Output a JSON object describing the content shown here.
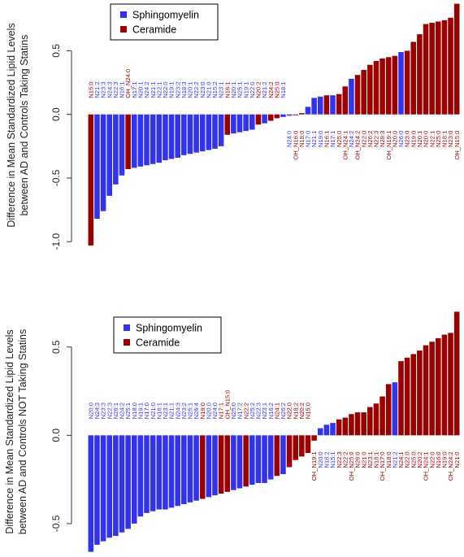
{
  "colors": {
    "Sphingomyelin": "#3333ee",
    "Ceramide": "#990000"
  },
  "legend": [
    {
      "label": "Sphingomyelin",
      "color": "#3333ee"
    },
    {
      "label": "Ceramide",
      "color": "#990000"
    }
  ],
  "chart_data": [
    {
      "type": "bar",
      "ylabel": "Difference in Mean Standardized Lipid Levels\nbetween AD and Controls Taking Statins",
      "ylim": [
        -1.05,
        0.88
      ],
      "yticks": [
        "0.5",
        "0.0",
        "-0.5",
        "-1.0"
      ],
      "yticks_values": [
        0.5,
        0.0,
        -0.5,
        -1.0
      ],
      "grid": false,
      "legend_position": "top-left",
      "categories": [
        "N15:0",
        "N21:2",
        "N23:3",
        "N24:3",
        "N22:3",
        "N16:1",
        "OH_N24:0",
        "N17:1",
        "N20:1",
        "N24:2",
        "N21:1",
        "N22:1",
        "N22:0",
        "N19:1",
        "N23:2",
        "N18:3",
        "N20:1",
        "N22:2",
        "N23:0",
        "N21:0",
        "N15:2",
        "N23:1",
        "N16:1",
        "N20:1",
        "N25:1",
        "N19:1",
        "N22:0",
        "N20:2",
        "N21:2",
        "N24:2",
        "N25:0",
        "N18:1",
        "N24:0",
        "OH_N16:0",
        "N18:0",
        "N17:0",
        "N21:1",
        "N19:0",
        "N16:1",
        "N17:1",
        "N25:0",
        "OH_N24:1",
        "N24:2",
        "OH_N24:2",
        "N22:0",
        "N26:2",
        "N22:3",
        "N28:3",
        "OH_N19:1",
        "N20:0",
        "N26:0",
        "N23:0",
        "N19:0",
        "N20:1",
        "N20:0",
        "N22:1",
        "N25:0",
        "N18:1",
        "N23:0",
        "OH_N15:0"
      ],
      "category_types": [
        "Ceramide",
        "Sphingomyelin",
        "Sphingomyelin",
        "Sphingomyelin",
        "Sphingomyelin",
        "Sphingomyelin",
        "Ceramide",
        "Sphingomyelin",
        "Sphingomyelin",
        "Sphingomyelin",
        "Sphingomyelin",
        "Sphingomyelin",
        "Sphingomyelin",
        "Sphingomyelin",
        "Sphingomyelin",
        "Sphingomyelin",
        "Sphingomyelin",
        "Sphingomyelin",
        "Sphingomyelin",
        "Sphingomyelin",
        "Sphingomyelin",
        "Sphingomyelin",
        "Ceramide",
        "Sphingomyelin",
        "Sphingomyelin",
        "Sphingomyelin",
        "Sphingomyelin",
        "Ceramide",
        "Sphingomyelin",
        "Ceramide",
        "Ceramide",
        "Sphingomyelin",
        "Sphingomyelin",
        "Ceramide",
        "Ceramide",
        "Sphingomyelin",
        "Sphingomyelin",
        "Sphingomyelin",
        "Ceramide",
        "Sphingomyelin",
        "Ceramide",
        "Ceramide",
        "Sphingomyelin",
        "Ceramide",
        "Ceramide",
        "Ceramide",
        "Ceramide",
        "Ceramide",
        "Ceramide",
        "Ceramide",
        "Sphingomyelin",
        "Ceramide",
        "Ceramide",
        "Ceramide",
        "Ceramide",
        "Ceramide",
        "Ceramide",
        "Ceramide",
        "Ceramide",
        "Ceramide"
      ],
      "values": [
        -1.03,
        -0.82,
        -0.76,
        -0.64,
        -0.55,
        -0.48,
        -0.43,
        -0.42,
        -0.41,
        -0.4,
        -0.39,
        -0.38,
        -0.36,
        -0.35,
        -0.34,
        -0.32,
        -0.31,
        -0.3,
        -0.29,
        -0.28,
        -0.27,
        -0.25,
        -0.16,
        -0.15,
        -0.14,
        -0.13,
        -0.12,
        -0.08,
        -0.07,
        -0.05,
        -0.03,
        -0.02,
        -0.01,
        -0.005,
        0.01,
        0.06,
        0.13,
        0.14,
        0.15,
        0.15,
        0.16,
        0.22,
        0.28,
        0.31,
        0.35,
        0.39,
        0.42,
        0.44,
        0.45,
        0.46,
        0.49,
        0.5,
        0.57,
        0.63,
        0.71,
        0.72,
        0.73,
        0.74,
        0.76,
        0.87
      ],
      "label_side": [
        "above",
        "above",
        "above",
        "above",
        "above",
        "above",
        "above",
        "above",
        "above",
        "above",
        "above",
        "above",
        "above",
        "above",
        "above",
        "above",
        "above",
        "above",
        "above",
        "above",
        "above",
        "above",
        "above",
        "above",
        "above",
        "above",
        "above",
        "above",
        "above",
        "above",
        "above",
        "above",
        "below",
        "below",
        "below",
        "below",
        "below",
        "below",
        "below",
        "below",
        "below",
        "below",
        "below",
        "below",
        "below",
        "below",
        "below",
        "below",
        "below",
        "below",
        "below",
        "below",
        "below",
        "below",
        "below",
        "below",
        "below",
        "below",
        "below",
        "below"
      ]
    },
    {
      "type": "bar",
      "ylabel": "Difference in Mean Standardized Lipid Levels\nbetween AD and Controls NOT Taking Statins",
      "ylim": [
        -0.68,
        0.72
      ],
      "yticks": [
        "0.5",
        "0.0",
        "-0.5"
      ],
      "yticks_values": [
        0.5,
        0.0,
        -0.5
      ],
      "grid": false,
      "legend_position": "top-left",
      "categories": [
        "N20:0",
        "N24:3",
        "N23:3",
        "N22:3",
        "N26:1",
        "N24:2",
        "N25:1",
        "N18:0",
        "N19:1",
        "N17:0",
        "N21:0",
        "N16:1",
        "N23:1",
        "N21:1",
        "N24:3",
        "N23:2",
        "N25:1",
        "N26:4",
        "N19:0",
        "N20:0",
        "N24:0",
        "N17:1",
        "OH_N15:0",
        "N25:0",
        "N17:2",
        "N22:2",
        "N25:2",
        "N22:3",
        "N23:1",
        "N16:2",
        "N24:1",
        "N26:2",
        "N22:0",
        "N18:2",
        "N20:2",
        "N15:0",
        "OH_N19:1",
        "N20:0",
        "N18:2",
        "N15:1",
        "N22:3",
        "N22:2",
        "OH_N25:0",
        "N26:0",
        "N21:0",
        "N23:1",
        "N18:1",
        "OH_N17:0",
        "N18:0",
        "N21:2",
        "N24:1",
        "N22:0",
        "N25:0",
        "N20:2",
        "OH_N24:1",
        "N22:0",
        "N16:0",
        "N19:0",
        "OH_N24:2",
        "N21:0"
      ],
      "category_types": [
        "Sphingomyelin",
        "Sphingomyelin",
        "Sphingomyelin",
        "Sphingomyelin",
        "Sphingomyelin",
        "Sphingomyelin",
        "Sphingomyelin",
        "Sphingomyelin",
        "Sphingomyelin",
        "Sphingomyelin",
        "Sphingomyelin",
        "Sphingomyelin",
        "Sphingomyelin",
        "Sphingomyelin",
        "Sphingomyelin",
        "Sphingomyelin",
        "Sphingomyelin",
        "Sphingomyelin",
        "Ceramide",
        "Sphingomyelin",
        "Sphingomyelin",
        "Ceramide",
        "Ceramide",
        "Sphingomyelin",
        "Sphingomyelin",
        "Ceramide",
        "Sphingomyelin",
        "Sphingomyelin",
        "Sphingomyelin",
        "Sphingomyelin",
        "Ceramide",
        "Sphingomyelin",
        "Ceramide",
        "Ceramide",
        "Ceramide",
        "Ceramide",
        "Ceramide",
        "Sphingomyelin",
        "Sphingomyelin",
        "Sphingomyelin",
        "Ceramide",
        "Ceramide",
        "Ceramide",
        "Ceramide",
        "Ceramide",
        "Ceramide",
        "Ceramide",
        "Ceramide",
        "Ceramide",
        "Sphingomyelin",
        "Ceramide",
        "Ceramide",
        "Ceramide",
        "Ceramide",
        "Ceramide",
        "Ceramide",
        "Ceramide",
        "Ceramide",
        "Ceramide",
        "Ceramide"
      ],
      "values": [
        -0.66,
        -0.62,
        -0.6,
        -0.58,
        -0.57,
        -0.55,
        -0.53,
        -0.5,
        -0.46,
        -0.44,
        -0.43,
        -0.42,
        -0.42,
        -0.41,
        -0.4,
        -0.39,
        -0.38,
        -0.37,
        -0.36,
        -0.35,
        -0.34,
        -0.33,
        -0.32,
        -0.31,
        -0.3,
        -0.29,
        -0.28,
        -0.27,
        -0.27,
        -0.25,
        -0.23,
        -0.22,
        -0.18,
        -0.14,
        -0.12,
        -0.1,
        -0.03,
        0.04,
        0.06,
        0.07,
        0.09,
        0.1,
        0.12,
        0.13,
        0.13,
        0.16,
        0.18,
        0.22,
        0.29,
        0.3,
        0.42,
        0.44,
        0.46,
        0.48,
        0.51,
        0.53,
        0.55,
        0.57,
        0.58,
        0.7
      ],
      "label_side": [
        "above",
        "above",
        "above",
        "above",
        "above",
        "above",
        "above",
        "above",
        "above",
        "above",
        "above",
        "above",
        "above",
        "above",
        "above",
        "above",
        "above",
        "above",
        "above",
        "above",
        "above",
        "above",
        "above",
        "above",
        "above",
        "above",
        "above",
        "above",
        "above",
        "above",
        "above",
        "above",
        "above",
        "above",
        "above",
        "above",
        "below",
        "below",
        "below",
        "below",
        "below",
        "below",
        "below",
        "below",
        "below",
        "below",
        "below",
        "below",
        "below",
        "below",
        "below",
        "below",
        "below",
        "below",
        "below",
        "below",
        "below",
        "below",
        "below",
        "below"
      ]
    }
  ]
}
